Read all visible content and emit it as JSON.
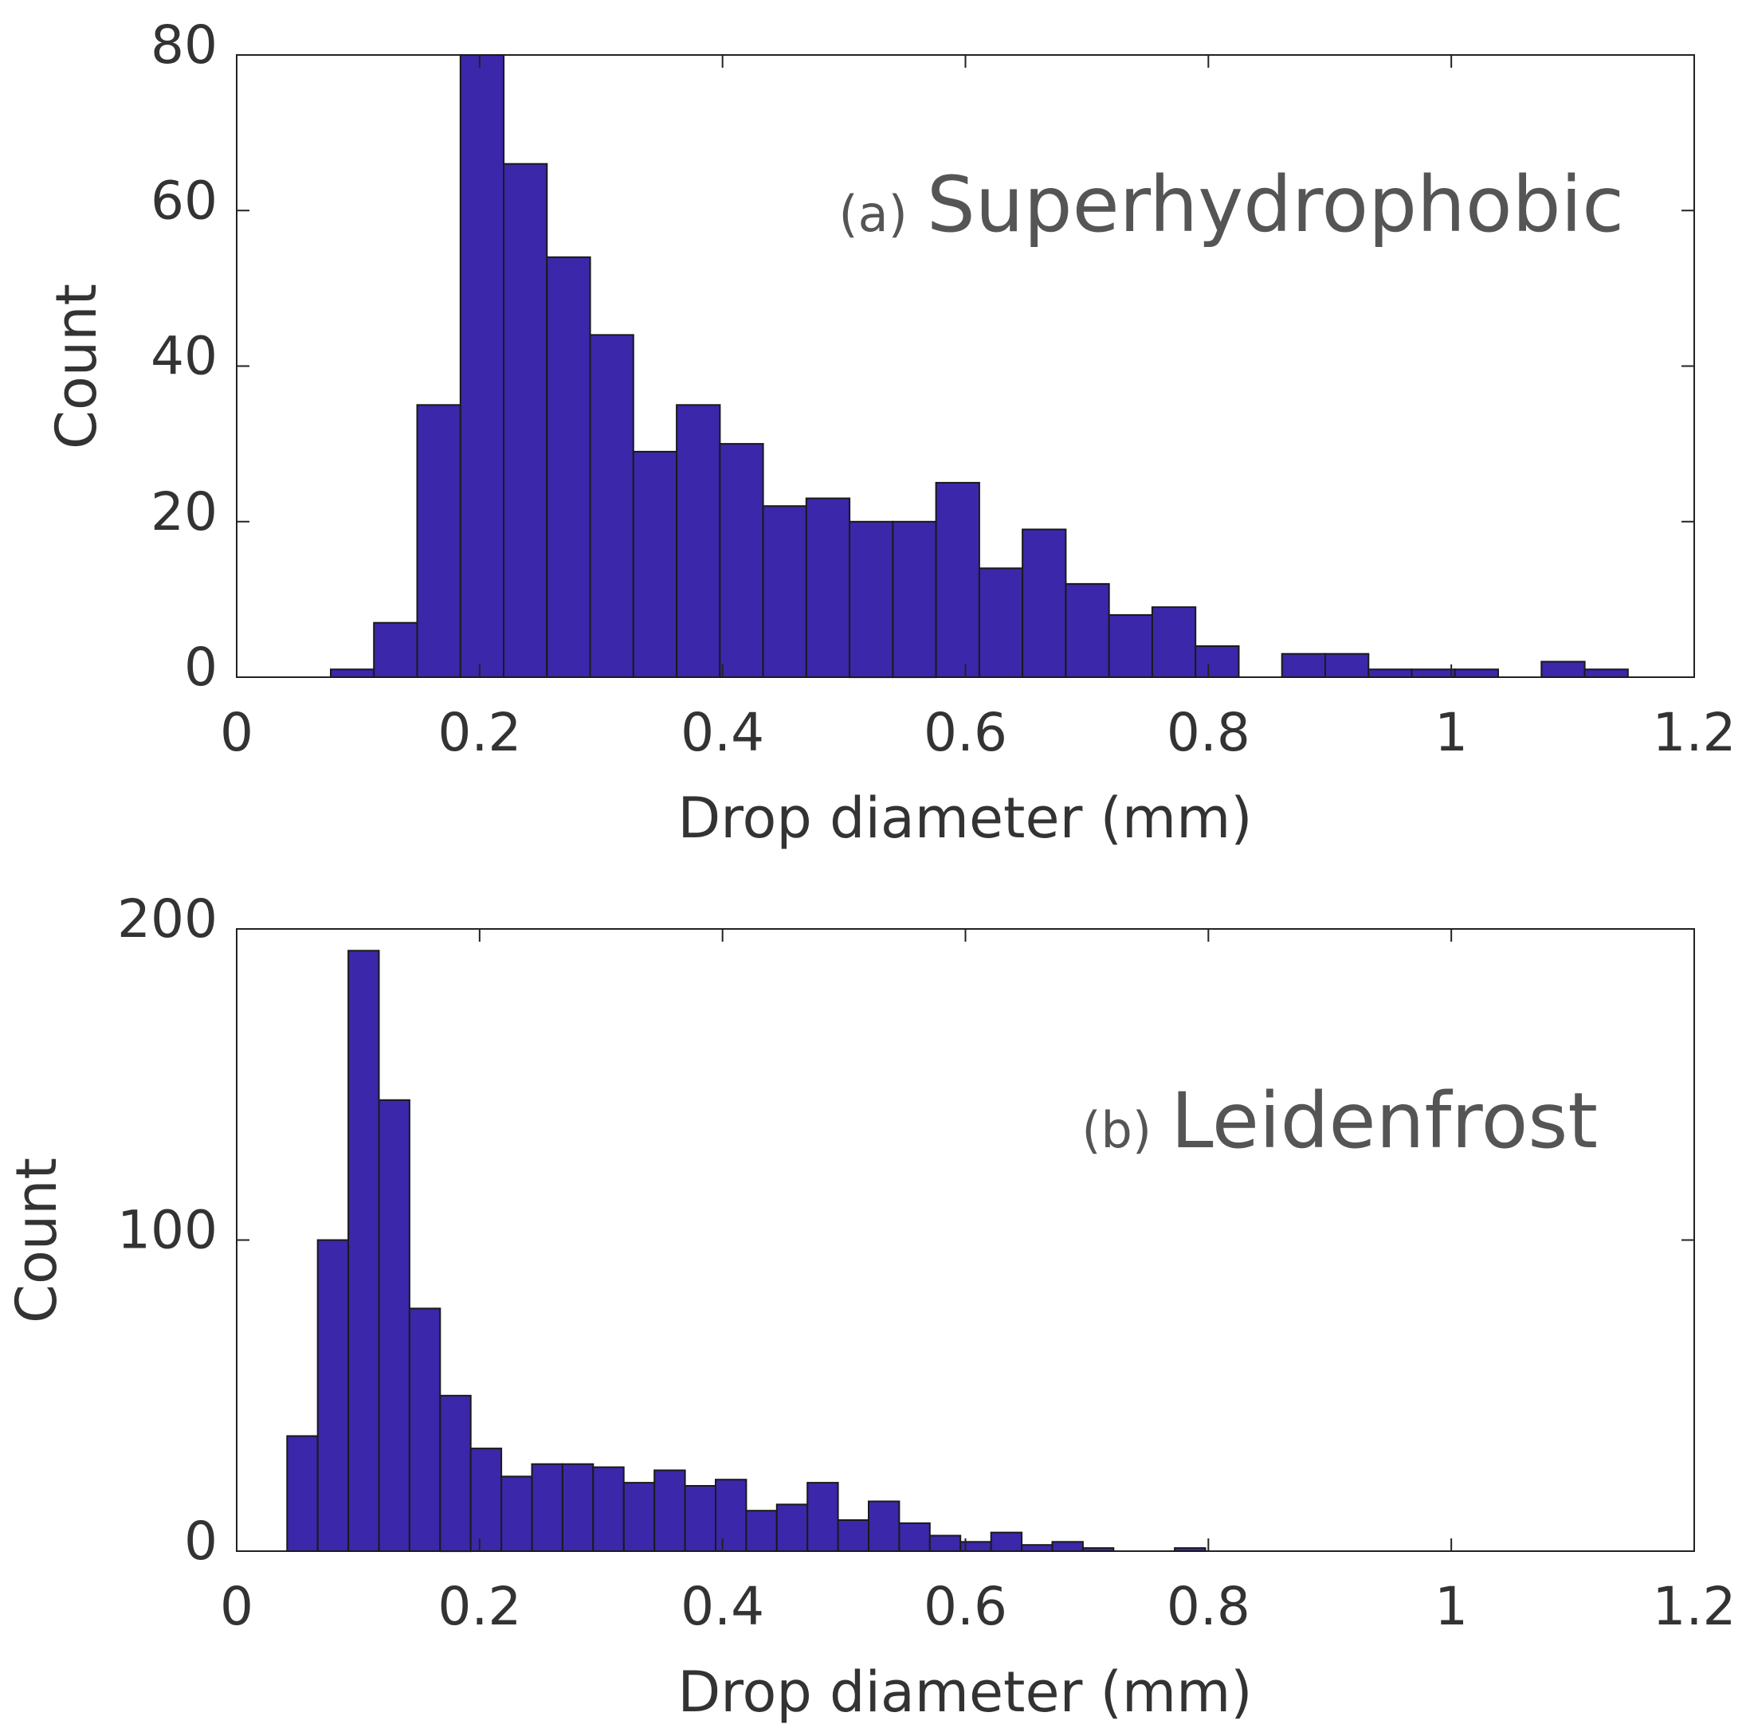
{
  "chart_data": [
    {
      "type": "bar",
      "panel": "a",
      "annotation_prefix": "(a)",
      "annotation": "Superhydrophobic",
      "xlabel": "Drop diameter (mm)",
      "ylabel": "Count",
      "xlim": [
        0,
        1.2
      ],
      "ylim": [
        0,
        80
      ],
      "xticks": [
        "0",
        "0.2",
        "0.4",
        "0.6",
        "0.8",
        "1",
        "1.2"
      ],
      "yticks": [
        "0",
        "20",
        "40",
        "60",
        "80"
      ],
      "bin_start": 0.0774,
      "bin_width": 0.0356,
      "values": [
        1,
        7,
        35,
        80,
        66,
        54,
        44,
        29,
        35,
        30,
        22,
        23,
        20,
        20,
        25,
        14,
        19,
        12,
        8,
        9,
        4,
        0,
        3,
        3,
        1,
        1,
        1,
        0,
        2,
        1
      ],
      "bar_color": "#3b27a9"
    },
    {
      "type": "bar",
      "panel": "b",
      "annotation_prefix": "(b)",
      "annotation": "Leidenfrost",
      "xlabel": "Drop diameter (mm)",
      "ylabel": "Count",
      "xlim": [
        0,
        1.2
      ],
      "ylim": [
        0,
        200
      ],
      "xticks": [
        "0",
        "0.2",
        "0.4",
        "0.6",
        "0.8",
        "1",
        "1.2"
      ],
      "yticks": [
        "0",
        "100",
        "200"
      ],
      "bin_start": 0.0415,
      "bin_width": 0.0252,
      "values": [
        37,
        100,
        193,
        145,
        78,
        50,
        33,
        24,
        28,
        28,
        27,
        22,
        26,
        21,
        23,
        13,
        15,
        22,
        10,
        16,
        9,
        5,
        3,
        6,
        2,
        3,
        1,
        0,
        0,
        1
      ],
      "bar_color": "#3b27a9"
    }
  ]
}
